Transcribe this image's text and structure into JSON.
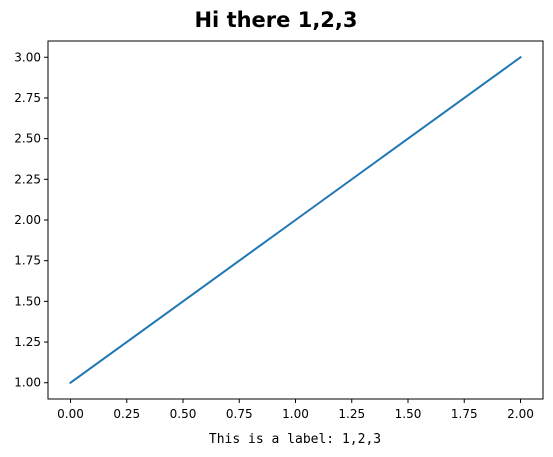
{
  "chart_data": {
    "type": "line",
    "title": "Hi there 1,2,3",
    "xlabel": "This is a label: 1,2,3",
    "ylabel": "",
    "x": [
      0,
      1,
      2
    ],
    "series": [
      {
        "values": [
          1,
          2,
          3
        ],
        "color": "#1f77b4"
      }
    ],
    "xlim": [
      -0.1,
      2.1
    ],
    "ylim": [
      0.9,
      3.1
    ],
    "xticks": [
      0.0,
      0.25,
      0.5,
      0.75,
      1.0,
      1.25,
      1.5,
      1.75,
      2.0
    ],
    "xtick_labels": [
      "0.00",
      "0.25",
      "0.50",
      "0.75",
      "1.00",
      "1.25",
      "1.50",
      "1.75",
      "2.00"
    ],
    "yticks": [
      1.0,
      1.25,
      1.5,
      1.75,
      2.0,
      2.25,
      2.5,
      2.75,
      3.0
    ],
    "ytick_labels": [
      "1.00",
      "1.25",
      "1.50",
      "1.75",
      "2.00",
      "2.25",
      "2.50",
      "2.75",
      "3.00"
    ],
    "grid": false,
    "legend": "none"
  }
}
